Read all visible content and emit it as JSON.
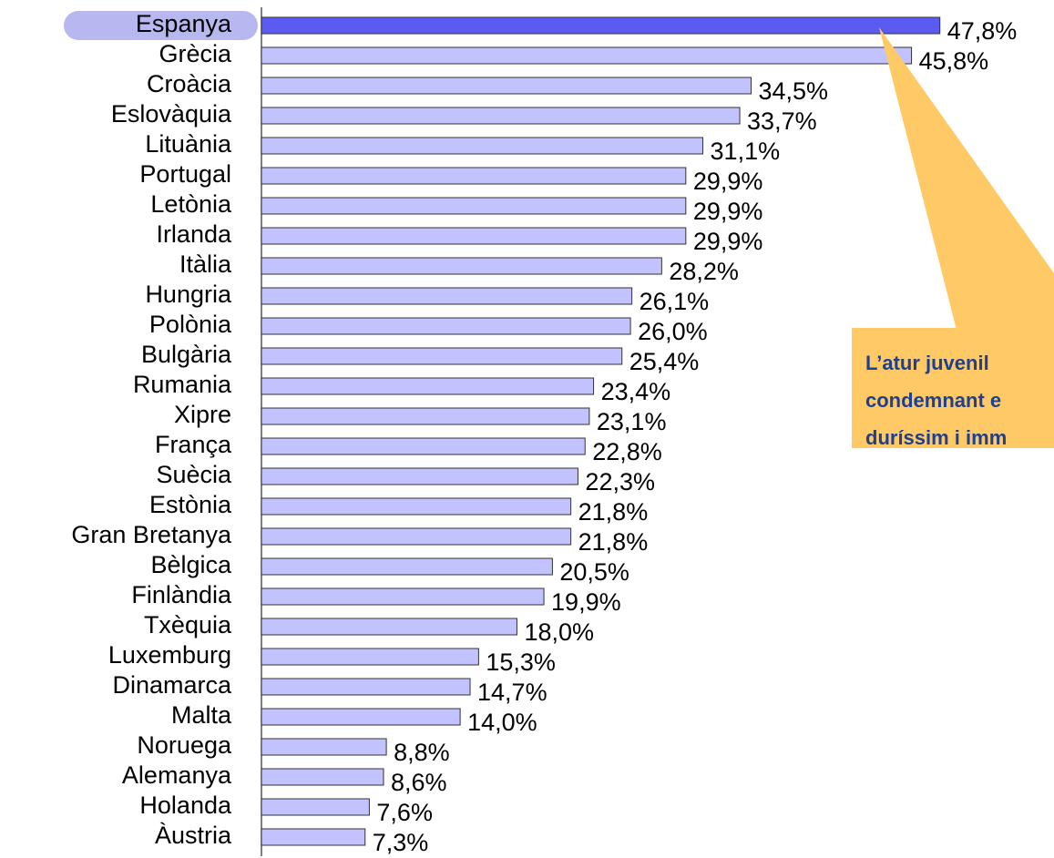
{
  "chart_data": {
    "type": "bar",
    "orientation": "horizontal",
    "categories": [
      "Espanya",
      "Grècia",
      "Croàcia",
      "Eslovàquia",
      "Lituània",
      "Portugal",
      "Letònia",
      "Irlanda",
      "Itàlia",
      "Hungria",
      "Polònia",
      "Bulgària",
      "Rumania",
      "Xipre",
      "França",
      "Suècia",
      "Estònia",
      "Gran Bretanya",
      "Bèlgica",
      "Finlàndia",
      "Txèquia",
      "Luxemburg",
      "Dinamarca",
      "Malta",
      "Noruega",
      "Alemanya",
      "Holanda",
      "Àustria"
    ],
    "values": [
      47.8,
      45.8,
      34.5,
      33.7,
      31.1,
      29.9,
      29.9,
      29.9,
      28.2,
      26.1,
      26.0,
      25.4,
      23.4,
      23.1,
      22.8,
      22.3,
      21.8,
      21.8,
      20.5,
      19.9,
      18.0,
      15.3,
      14.7,
      14.0,
      8.8,
      8.6,
      7.6,
      7.3
    ],
    "value_labels": [
      "47,8%",
      "45,8%",
      "34,5%",
      "33,7%",
      "31,1%",
      "29,9%",
      "29,9%",
      "29,9%",
      "28,2%",
      "26,1%",
      "26,0%",
      "25,4%",
      "23,4%",
      "23,1%",
      "22,8%",
      "22,3%",
      "21,8%",
      "21,8%",
      "20,5%",
      "19,9%",
      "18,0%",
      "15,3%",
      "14,7%",
      "14,0%",
      "8,8%",
      "8,6%",
      "7,6%",
      "7,3%"
    ],
    "colors": [
      "#5b5bf2",
      "#c2c2ff",
      "#c2c2ff",
      "#c2c2ff",
      "#c2c2ff",
      "#c2c2ff",
      "#c2c2ff",
      "#c2c2ff",
      "#c2c2ff",
      "#c2c2ff",
      "#c2c2ff",
      "#c2c2ff",
      "#c2c2ff",
      "#c2c2ff",
      "#c2c2ff",
      "#c2c2ff",
      "#c2c2ff",
      "#c2c2ff",
      "#c2c2ff",
      "#c2c2ff",
      "#c2c2ff",
      "#c2c2ff",
      "#c2c2ff",
      "#c2c2ff",
      "#c2c2ff",
      "#c2c2ff",
      "#c2c2ff",
      "#c2c2ff"
    ],
    "xlim": [
      0,
      50
    ],
    "annotation": [
      "L’atur juvenil",
      "condemnant e",
      "duríssim i imm"
    ]
  }
}
